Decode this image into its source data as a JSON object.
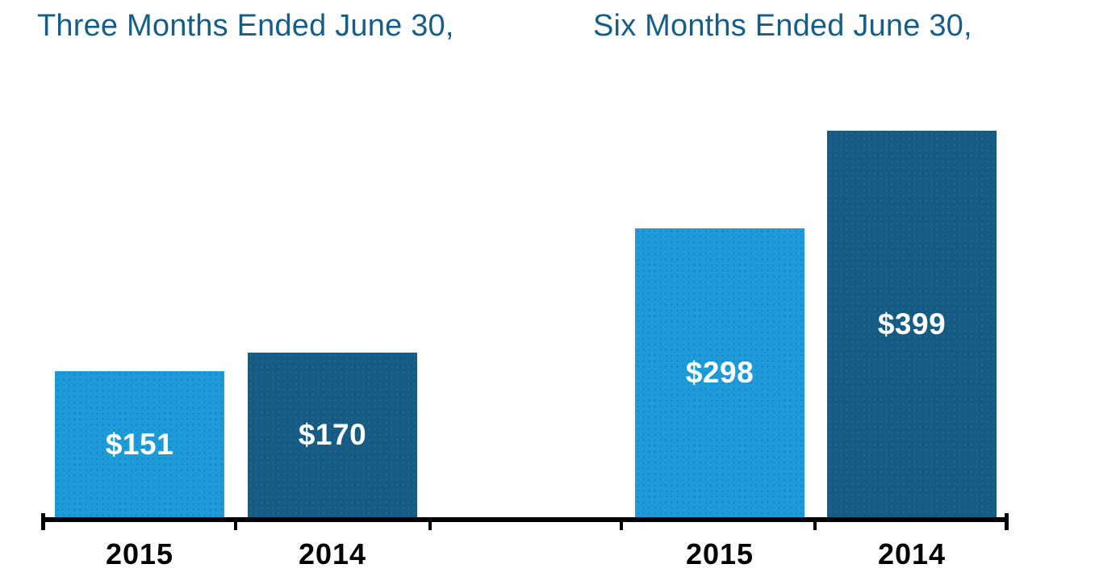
{
  "chart_data": {
    "type": "bar",
    "panels": [
      {
        "title": "Three Months Ended June 30,",
        "categories": [
          "2015",
          "2014"
        ],
        "values": [
          151,
          170
        ],
        "value_labels": [
          "$151",
          "$170"
        ],
        "bar_colors": [
          "#1E9CD9",
          "#155B84"
        ]
      },
      {
        "title": "Six Months Ended June 30,",
        "categories": [
          "2015",
          "2014"
        ],
        "values": [
          298,
          399
        ],
        "value_labels": [
          "$298",
          "$399"
        ],
        "bar_colors": [
          "#1E9CD9",
          "#155B84"
        ]
      }
    ],
    "xlabel": "",
    "ylabel": "",
    "ylim": [
      0,
      420
    ],
    "grid": "off",
    "legend": "none",
    "axis_color": "#000000",
    "title_color": "#175D85",
    "value_label_color": "#FFFFFF",
    "category_label_color": "#000000",
    "background_color": "#FFFFFF"
  }
}
